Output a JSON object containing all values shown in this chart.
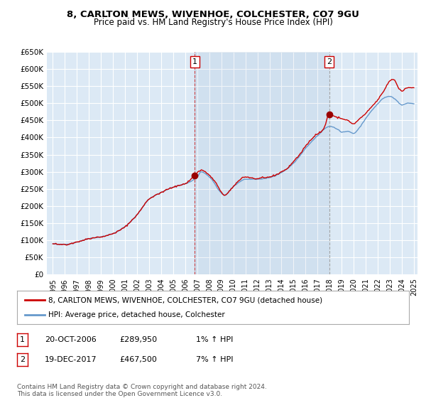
{
  "title": "8, CARLTON MEWS, WIVENHOE, COLCHESTER, CO7 9GU",
  "subtitle": "Price paid vs. HM Land Registry's House Price Index (HPI)",
  "ylabel": "",
  "background_color": "#ffffff",
  "plot_bg_color": "#dce9f5",
  "grid_color": "#ffffff",
  "line1_color": "#cc0000",
  "line2_color": "#6699cc",
  "sale1_date_year": 2006.8,
  "sale1_price": 289950,
  "sale2_date_year": 2017.97,
  "sale2_price": 467500,
  "sale1_label": "1",
  "sale2_label": "2",
  "sale1_date_str": "20-OCT-2006",
  "sale2_date_str": "19-DEC-2017",
  "sale1_hpi": "1% ↑ HPI",
  "sale2_hpi": "7% ↑ HPI",
  "legend1": "8, CARLTON MEWS, WIVENHOE, COLCHESTER, CO7 9GU (detached house)",
  "legend2": "HPI: Average price, detached house, Colchester",
  "footnote1": "Contains HM Land Registry data © Crown copyright and database right 2024.",
  "footnote2": "This data is licensed under the Open Government Licence v3.0.",
  "xmin": 1994.5,
  "xmax": 2025.3,
  "ymin": 0,
  "ymax": 650000,
  "yticks": [
    0,
    50000,
    100000,
    150000,
    200000,
    250000,
    300000,
    350000,
    400000,
    450000,
    500000,
    550000,
    600000,
    650000
  ],
  "xticks": [
    1995,
    1996,
    1997,
    1998,
    1999,
    2000,
    2001,
    2002,
    2003,
    2004,
    2005,
    2006,
    2007,
    2008,
    2009,
    2010,
    2011,
    2012,
    2013,
    2014,
    2015,
    2016,
    2017,
    2018,
    2019,
    2020,
    2021,
    2022,
    2023,
    2024,
    2025
  ]
}
